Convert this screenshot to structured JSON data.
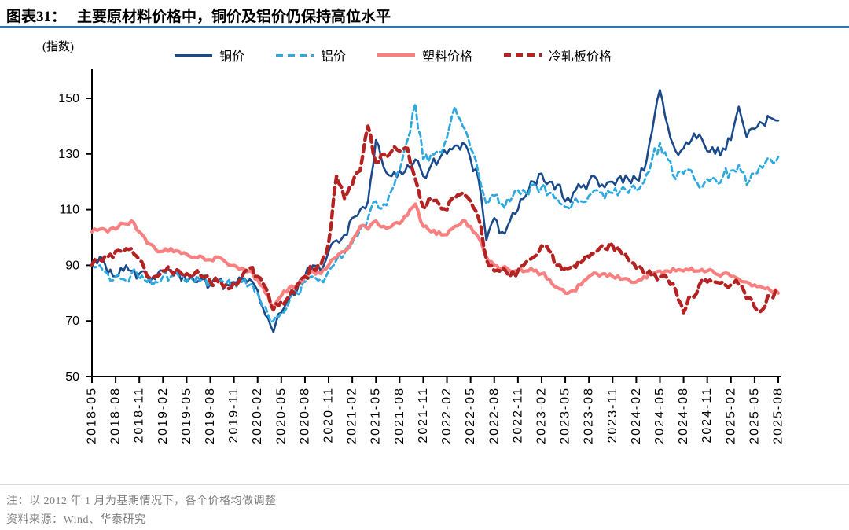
{
  "figure": {
    "title_prefix": "图表31：",
    "title": "主要原材料价格中，铜价及铝价仍保持高位水平",
    "unit_label": "(指数)",
    "note": "注：以 2012 年 1 月为基期情况下，各个价格均做调整",
    "source": "资料来源：Wind、华泰研究"
  },
  "legend": {
    "items": [
      {
        "label": "铜价"
      },
      {
        "label": "铝价"
      },
      {
        "label": "塑料价格"
      },
      {
        "label": "冷轧板价格"
      }
    ]
  },
  "colors": {
    "title_rule": "#2e74b5",
    "note_text": "#7f7f7f",
    "divider": "#d9d9d9",
    "axis": "#000000"
  },
  "chart_data": {
    "type": "line",
    "title": "主要原材料价格中，铜价及铝价仍保持高位水平",
    "ylabel": "指数",
    "ylim": [
      50,
      160
    ],
    "yticks": [
      50,
      70,
      90,
      110,
      130,
      150
    ],
    "grid": false,
    "legend_position": "top",
    "x": [
      "2018-05",
      "2018-06",
      "2018-07",
      "2018-08",
      "2018-09",
      "2018-10",
      "2018-11",
      "2018-12",
      "2019-01",
      "2019-02",
      "2019-03",
      "2019-04",
      "2019-05",
      "2019-06",
      "2019-07",
      "2019-08",
      "2019-09",
      "2019-10",
      "2019-11",
      "2019-12",
      "2020-01",
      "2020-02",
      "2020-03",
      "2020-04",
      "2020-05",
      "2020-06",
      "2020-07",
      "2020-08",
      "2020-09",
      "2020-10",
      "2020-11",
      "2020-12",
      "2021-01",
      "2021-02",
      "2021-03",
      "2021-04",
      "2021-05",
      "2021-06",
      "2021-07",
      "2021-08",
      "2021-09",
      "2021-10",
      "2021-11",
      "2021-12",
      "2022-01",
      "2022-02",
      "2022-03",
      "2022-04",
      "2022-05",
      "2022-06",
      "2022-07",
      "2022-08",
      "2022-09",
      "2022-10",
      "2022-11",
      "2022-12",
      "2023-01",
      "2023-02",
      "2023-03",
      "2023-04",
      "2023-05",
      "2023-06",
      "2023-07",
      "2023-08",
      "2023-09",
      "2023-10",
      "2023-11",
      "2023-12",
      "2024-01",
      "2024-02",
      "2024-03",
      "2024-04",
      "2024-05",
      "2024-06",
      "2024-07",
      "2024-08",
      "2024-09",
      "2024-10",
      "2024-11",
      "2024-12",
      "2025-01",
      "2025-02",
      "2025-03",
      "2025-04",
      "2025-05",
      "2025-06",
      "2025-07",
      "2025-08"
    ],
    "x_tick_labels": [
      "2018-05",
      "2018-08",
      "2018-11",
      "2019-02",
      "2019-05",
      "2019-08",
      "2019-11",
      "2020-02",
      "2020-05",
      "2020-08",
      "2020-11",
      "2021-02",
      "2021-05",
      "2021-08",
      "2021-11",
      "2022-02",
      "2022-05",
      "2022-08",
      "2022-11",
      "2023-02",
      "2023-05",
      "2023-08",
      "2023-11",
      "2024-02",
      "2024-05",
      "2024-08",
      "2024-11",
      "2025-02",
      "2025-05",
      "2025-08"
    ],
    "series": [
      {
        "name": "铜价",
        "color": "#1b4a8a",
        "dash": "solid",
        "width": 2.6,
        "values": [
          91,
          93,
          87,
          86,
          88,
          88,
          87,
          86,
          85,
          88,
          88,
          87,
          84,
          84,
          85,
          83,
          84,
          83,
          84,
          85,
          85,
          81,
          72,
          66,
          73,
          78,
          81,
          86,
          90,
          88,
          95,
          99,
          101,
          107,
          110,
          113,
          135,
          125,
          122,
          124,
          126,
          128,
          122,
          126,
          128,
          130,
          133,
          134,
          128,
          121,
          99,
          107,
          102,
          106,
          110,
          115,
          120,
          123,
          120,
          119,
          113,
          116,
          118,
          120,
          121,
          118,
          120,
          122,
          121,
          121,
          124,
          138,
          153,
          140,
          131,
          132,
          135,
          137,
          131,
          130,
          132,
          135,
          147,
          136,
          139,
          141,
          143,
          142
        ]
      },
      {
        "name": "铝价",
        "color": "#2ea9e0",
        "dash": "dashed",
        "width": 2.8,
        "values": [
          90,
          90,
          87,
          86,
          85,
          87,
          85,
          84,
          84,
          86,
          86,
          86,
          84,
          84,
          85,
          84,
          84,
          83,
          84,
          84,
          83,
          80,
          75,
          70,
          73,
          77,
          80,
          84,
          86,
          85,
          88,
          92,
          94,
          98,
          103,
          107,
          113,
          112,
          117,
          124,
          135,
          148,
          128,
          130,
          131,
          136,
          147,
          140,
          132,
          123,
          112,
          115,
          112,
          113,
          117,
          116,
          119,
          118,
          116,
          114,
          111,
          113,
          113,
          115,
          117,
          114,
          116,
          117,
          116,
          117,
          120,
          128,
          134,
          128,
          121,
          123,
          124,
          118,
          121,
          121,
          122,
          124,
          126,
          119,
          123,
          125,
          128,
          129
        ]
      },
      {
        "name": "塑料价格",
        "color": "#f88080",
        "dash": "solid",
        "width": 4.2,
        "values": [
          102,
          103,
          102,
          103,
          105,
          106,
          102,
          98,
          96,
          95,
          96,
          95,
          94,
          93,
          93,
          92,
          93,
          91,
          90,
          89,
          88,
          85,
          80,
          75,
          79,
          82,
          83,
          86,
          88,
          87,
          90,
          93,
          95,
          99,
          104,
          103,
          106,
          104,
          104,
          105,
          108,
          112,
          104,
          102,
          102,
          101,
          104,
          106,
          104,
          100,
          93,
          90,
          89,
          88,
          88,
          88,
          88,
          87,
          85,
          82,
          80,
          81,
          83,
          86,
          87,
          87,
          86,
          85,
          85,
          84,
          86,
          87,
          88,
          88,
          88,
          88,
          89,
          88,
          88,
          87,
          87,
          86,
          85,
          84,
          83,
          82,
          81,
          80
        ]
      },
      {
        "name": "冷轧板价格",
        "color": "#b42222",
        "dash": "dashed",
        "width": 4.4,
        "values": [
          90,
          92,
          93,
          95,
          95,
          96,
          92,
          86,
          86,
          88,
          88,
          88,
          87,
          87,
          86,
          84,
          84,
          83,
          84,
          86,
          89,
          86,
          82,
          74,
          77,
          79,
          83,
          86,
          89,
          90,
          98,
          122,
          114,
          119,
          124,
          140,
          127,
          130,
          131,
          131,
          132,
          121,
          111,
          114,
          112,
          110,
          114,
          116,
          113,
          107,
          92,
          88,
          89,
          86,
          88,
          91,
          93,
          97,
          95,
          90,
          89,
          90,
          91,
          93,
          95,
          96,
          97,
          95,
          92,
          89,
          87,
          86,
          86,
          85,
          81,
          73,
          79,
          83,
          84,
          84,
          84,
          83,
          83,
          78,
          75,
          74,
          79,
          80
        ]
      }
    ]
  }
}
